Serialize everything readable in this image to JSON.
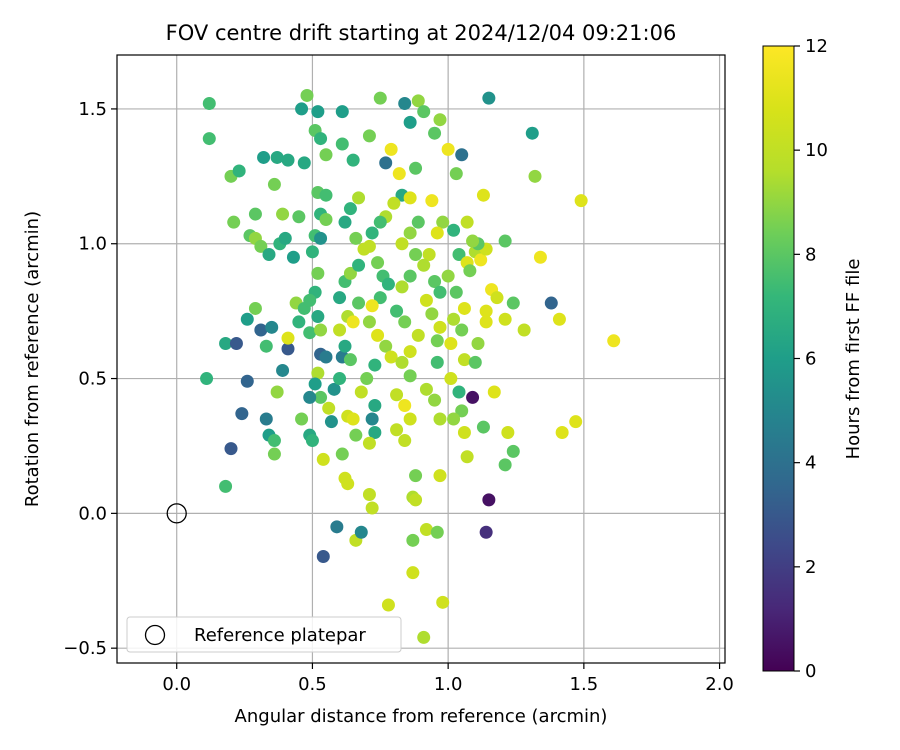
{
  "chart_data": {
    "type": "scatter",
    "title": "FOV centre drift starting at 2024/12/04 09:21:06",
    "xlabel": "Angular distance from reference (arcmin)",
    "ylabel": "Rotation from reference (arcmin)",
    "xlim": [
      -0.22,
      2.02
    ],
    "ylim": [
      -0.555,
      1.7
    ],
    "xticks": [
      0.0,
      0.5,
      1.0,
      1.5,
      2.0
    ],
    "xtick_labels": [
      "0.0",
      "0.5",
      "1.0",
      "1.5",
      "2.0"
    ],
    "yticks": [
      -0.5,
      0.0,
      0.5,
      1.0,
      1.5
    ],
    "ytick_labels": [
      "−0.5",
      "0.0",
      "0.5",
      "1.0",
      "1.5"
    ],
    "grid": true,
    "legend_position": "lower-left",
    "legend": [
      {
        "label": "Reference platepar",
        "marker": "open-circle"
      }
    ],
    "reference_point": {
      "x": 0.0,
      "y": 0.0
    },
    "colorbar": {
      "label": "Hours from first FF file",
      "range": [
        0,
        12
      ],
      "ticks": [
        0,
        2,
        4,
        6,
        8,
        10,
        12
      ],
      "colormap": "viridis"
    },
    "columns": [
      "x",
      "y",
      "hours"
    ],
    "points": [
      [
        0.12,
        1.52,
        7.5
      ],
      [
        0.12,
        1.39,
        7.5
      ],
      [
        0.11,
        0.5,
        7.0
      ],
      [
        0.18,
        0.63,
        6.5
      ],
      [
        0.18,
        0.1,
        7.5
      ],
      [
        0.2,
        0.24,
        3.0
      ],
      [
        0.22,
        0.63,
        3.0
      ],
      [
        0.24,
        0.37,
        3.5
      ],
      [
        0.26,
        0.49,
        3.5
      ],
      [
        0.2,
        1.25,
        8.5
      ],
      [
        0.23,
        1.27,
        7.0
      ],
      [
        0.21,
        1.08,
        8.5
      ],
      [
        0.26,
        0.72,
        6.0
      ],
      [
        0.29,
        0.76,
        8.5
      ],
      [
        0.31,
        0.68,
        3.5
      ],
      [
        0.33,
        0.35,
        4.5
      ],
      [
        0.34,
        0.29,
        6.0
      ],
      [
        0.36,
        0.27,
        7.5
      ],
      [
        0.37,
        0.45,
        9.0
      ],
      [
        0.36,
        0.22,
        8.5
      ],
      [
        0.33,
        0.62,
        7.5
      ],
      [
        0.35,
        0.69,
        5.0
      ],
      [
        0.39,
        0.53,
        5.0
      ],
      [
        0.41,
        0.61,
        3.0
      ],
      [
        0.41,
        0.65,
        11.0
      ],
      [
        0.32,
        1.32,
        6.0
      ],
      [
        0.37,
        1.32,
        6.5
      ],
      [
        0.41,
        1.31,
        6.5
      ],
      [
        0.36,
        1.22,
        8.5
      ],
      [
        0.39,
        1.11,
        9.0
      ],
      [
        0.29,
        1.11,
        8.0
      ],
      [
        0.27,
        1.03,
        8.0
      ],
      [
        0.29,
        1.02,
        9.0
      ],
      [
        0.31,
        0.99,
        8.5
      ],
      [
        0.34,
        0.96,
        6.5
      ],
      [
        0.38,
        1.0,
        7.0
      ],
      [
        0.4,
        1.02,
        6.5
      ],
      [
        0.43,
        0.95,
        6.0
      ],
      [
        0.45,
        1.1,
        8.0
      ],
      [
        0.44,
        0.78,
        9.0
      ],
      [
        0.47,
        0.76,
        7.5
      ],
      [
        0.45,
        0.71,
        7.0
      ],
      [
        0.47,
        1.3,
        6.5
      ],
      [
        0.46,
        1.5,
        6.0
      ],
      [
        0.48,
        1.55,
        8.5
      ],
      [
        0.52,
        1.49,
        6.0
      ],
      [
        0.51,
        1.42,
        8.0
      ],
      [
        0.53,
        1.39,
        7.0
      ],
      [
        0.55,
        1.33,
        8.5
      ],
      [
        0.52,
        1.19,
        8.0
      ],
      [
        0.55,
        1.18,
        7.5
      ],
      [
        0.53,
        1.11,
        7.0
      ],
      [
        0.55,
        1.09,
        8.5
      ],
      [
        0.51,
        1.03,
        7.5
      ],
      [
        0.53,
        1.02,
        5.5
      ],
      [
        0.5,
        0.97,
        7.0
      ],
      [
        0.52,
        0.89,
        8.5
      ],
      [
        0.51,
        0.82,
        7.0
      ],
      [
        0.49,
        0.79,
        7.5
      ],
      [
        0.52,
        0.73,
        6.5
      ],
      [
        0.49,
        0.67,
        7.5
      ],
      [
        0.53,
        0.68,
        9.0
      ],
      [
        0.53,
        0.59,
        3.5
      ],
      [
        0.55,
        0.58,
        4.5
      ],
      [
        0.52,
        0.52,
        9.5
      ],
      [
        0.51,
        0.48,
        6.0
      ],
      [
        0.53,
        0.43,
        8.0
      ],
      [
        0.49,
        0.43,
        5.0
      ],
      [
        0.46,
        0.35,
        8.5
      ],
      [
        0.49,
        0.29,
        6.5
      ],
      [
        0.5,
        0.27,
        7.0
      ],
      [
        0.56,
        0.39,
        10.0
      ],
      [
        0.57,
        0.34,
        5.5
      ],
      [
        0.54,
        0.2,
        10.5
      ],
      [
        0.54,
        -0.16,
        3.0
      ],
      [
        0.59,
        -0.05,
        4.5
      ],
      [
        0.63,
        0.11,
        10.5
      ],
      [
        0.62,
        0.13,
        10.5
      ],
      [
        0.66,
        -0.1,
        10.0
      ],
      [
        0.68,
        -0.07,
        5.0
      ],
      [
        0.61,
        0.22,
        8.5
      ],
      [
        0.63,
        0.36,
        10.5
      ],
      [
        0.65,
        0.35,
        11.0
      ],
      [
        0.66,
        0.29,
        8.5
      ],
      [
        0.58,
        0.46,
        5.5
      ],
      [
        0.6,
        0.5,
        7.0
      ],
      [
        0.61,
        0.58,
        4.5
      ],
      [
        0.62,
        0.62,
        6.5
      ],
      [
        0.64,
        0.57,
        8.0
      ],
      [
        0.6,
        0.68,
        10.0
      ],
      [
        0.63,
        0.73,
        9.5
      ],
      [
        0.65,
        0.71,
        11.5
      ],
      [
        0.67,
        0.78,
        8.0
      ],
      [
        0.6,
        0.8,
        6.5
      ],
      [
        0.62,
        0.86,
        7.5
      ],
      [
        0.64,
        0.89,
        9.0
      ],
      [
        0.67,
        0.92,
        7.0
      ],
      [
        0.69,
        0.98,
        10.0
      ],
      [
        0.66,
        1.02,
        8.5
      ],
      [
        0.62,
        1.08,
        6.5
      ],
      [
        0.64,
        1.13,
        7.0
      ],
      [
        0.67,
        1.17,
        9.5
      ],
      [
        0.65,
        1.31,
        7.0
      ],
      [
        0.61,
        1.37,
        7.5
      ],
      [
        0.61,
        1.49,
        6.0
      ],
      [
        0.71,
        1.4,
        8.5
      ],
      [
        0.75,
        1.54,
        8.5
      ],
      [
        0.77,
        1.3,
        4.0
      ],
      [
        0.79,
        1.35,
        11.5
      ],
      [
        0.82,
        1.26,
        11.5
      ],
      [
        0.83,
        1.18,
        6.5
      ],
      [
        0.8,
        1.15,
        10.0
      ],
      [
        0.77,
        1.1,
        9.5
      ],
      [
        0.75,
        1.08,
        7.5
      ],
      [
        0.72,
        1.04,
        7.0
      ],
      [
        0.71,
        0.99,
        10.0
      ],
      [
        0.74,
        0.93,
        8.5
      ],
      [
        0.76,
        0.88,
        7.5
      ],
      [
        0.78,
        0.85,
        7.0
      ],
      [
        0.75,
        0.8,
        7.5
      ],
      [
        0.72,
        0.77,
        11.5
      ],
      [
        0.71,
        0.71,
        9.0
      ],
      [
        0.74,
        0.66,
        11.0
      ],
      [
        0.77,
        0.62,
        9.0
      ],
      [
        0.79,
        0.58,
        10.5
      ],
      [
        0.73,
        0.55,
        7.0
      ],
      [
        0.7,
        0.5,
        8.5
      ],
      [
        0.68,
        0.45,
        10.0
      ],
      [
        0.73,
        0.4,
        6.5
      ],
      [
        0.72,
        0.35,
        5.0
      ],
      [
        0.73,
        0.3,
        6.5
      ],
      [
        0.71,
        0.26,
        10.0
      ],
      [
        0.71,
        0.07,
        10.0
      ],
      [
        0.72,
        0.02,
        10.0
      ],
      [
        0.78,
        -0.34,
        10.5
      ],
      [
        0.81,
        0.31,
        10.0
      ],
      [
        0.84,
        0.27,
        10.0
      ],
      [
        0.86,
        0.35,
        10.5
      ],
      [
        0.84,
        0.4,
        11.5
      ],
      [
        0.81,
        0.44,
        10.0
      ],
      [
        0.86,
        0.51,
        8.5
      ],
      [
        0.83,
        0.56,
        9.5
      ],
      [
        0.86,
        0.6,
        10.5
      ],
      [
        0.89,
        0.66,
        10.0
      ],
      [
        0.84,
        0.71,
        8.5
      ],
      [
        0.81,
        0.75,
        7.5
      ],
      [
        0.83,
        0.84,
        9.5
      ],
      [
        0.86,
        0.88,
        8.0
      ],
      [
        0.88,
        0.96,
        8.5
      ],
      [
        0.83,
        1.0,
        10.0
      ],
      [
        0.86,
        1.04,
        9.0
      ],
      [
        0.89,
        1.08,
        8.0
      ],
      [
        0.86,
        1.17,
        11.0
      ],
      [
        0.88,
        1.28,
        8.0
      ],
      [
        0.84,
        1.52,
        5.0
      ],
      [
        0.89,
        1.53,
        9.0
      ],
      [
        0.91,
        1.49,
        8.0
      ],
      [
        0.86,
        1.45,
        6.0
      ],
      [
        0.95,
        1.41,
        8.0
      ],
      [
        0.97,
        1.46,
        9.0
      ],
      [
        0.94,
        1.16,
        11.5
      ],
      [
        0.98,
        1.08,
        9.0
      ],
      [
        0.96,
        1.04,
        11.0
      ],
      [
        0.93,
        0.96,
        10.0
      ],
      [
        0.91,
        0.92,
        9.5
      ],
      [
        0.95,
        0.86,
        8.0
      ],
      [
        0.97,
        0.82,
        7.5
      ],
      [
        0.92,
        0.79,
        10.5
      ],
      [
        0.94,
        0.74,
        9.0
      ],
      [
        0.97,
        0.69,
        10.5
      ],
      [
        0.96,
        0.64,
        8.5
      ],
      [
        0.96,
        0.56,
        7.5
      ],
      [
        0.92,
        0.46,
        9.5
      ],
      [
        0.95,
        0.42,
        9.0
      ],
      [
        0.97,
        0.35,
        9.5
      ],
      [
        0.88,
        0.14,
        8.5
      ],
      [
        0.87,
        0.06,
        9.5
      ],
      [
        0.88,
        0.05,
        10.0
      ],
      [
        0.97,
        0.14,
        10.5
      ],
      [
        0.92,
        -0.06,
        10.0
      ],
      [
        0.96,
        -0.07,
        8.5
      ],
      [
        0.87,
        -0.1,
        8.5
      ],
      [
        0.87,
        -0.22,
        10.5
      ],
      [
        0.98,
        -0.33,
        10.5
      ],
      [
        0.91,
        -0.46,
        9.5
      ],
      [
        1.0,
        1.35,
        11.5
      ],
      [
        1.05,
        1.33,
        4.0
      ],
      [
        1.03,
        1.26,
        8.5
      ],
      [
        1.02,
        1.05,
        7.0
      ],
      [
        1.04,
        0.96,
        7.5
      ],
      [
        1.0,
        0.88,
        9.0
      ],
      [
        1.03,
        0.82,
        8.0
      ],
      [
        1.06,
        0.76,
        11.0
      ],
      [
        1.02,
        0.72,
        9.5
      ],
      [
        1.05,
        0.68,
        8.5
      ],
      [
        1.01,
        0.63,
        11.0
      ],
      [
        1.06,
        0.57,
        10.0
      ],
      [
        1.01,
        0.5,
        10.5
      ],
      [
        1.04,
        0.45,
        7.0
      ],
      [
        1.05,
        0.38,
        8.5
      ],
      [
        1.02,
        0.35,
        9.0
      ],
      [
        1.06,
        0.3,
        10.5
      ],
      [
        1.09,
        0.43,
        0.5
      ],
      [
        1.07,
        0.21,
        10.0
      ],
      [
        1.1,
        0.97,
        9.5
      ],
      [
        1.07,
        0.93,
        11.0
      ],
      [
        1.08,
        0.9,
        8.5
      ],
      [
        1.12,
        0.94,
        11.5
      ],
      [
        1.14,
        0.98,
        10.5
      ],
      [
        1.11,
        1.0,
        8.0
      ],
      [
        1.07,
        1.08,
        10.0
      ],
      [
        1.09,
        1.01,
        9.0
      ],
      [
        1.13,
        1.18,
        11.0
      ],
      [
        1.15,
        1.54,
        5.5
      ],
      [
        1.16,
        0.83,
        11.5
      ],
      [
        1.18,
        0.8,
        10.5
      ],
      [
        1.14,
        0.75,
        11.0
      ],
      [
        1.14,
        0.71,
        11.0
      ],
      [
        1.11,
        0.63,
        9.0
      ],
      [
        1.1,
        0.56,
        8.0
      ],
      [
        1.17,
        0.45,
        11.0
      ],
      [
        1.13,
        0.32,
        8.0
      ],
      [
        1.15,
        0.05,
        0.5
      ],
      [
        1.14,
        -0.07,
        1.5
      ],
      [
        1.21,
        1.01,
        8.0
      ],
      [
        1.24,
        0.78,
        8.0
      ],
      [
        1.21,
        0.72,
        10.5
      ],
      [
        1.22,
        0.3,
        10.5
      ],
      [
        1.24,
        0.23,
        8.0
      ],
      [
        1.21,
        0.18,
        8.0
      ],
      [
        1.28,
        0.68,
        10.0
      ],
      [
        1.31,
        1.41,
        6.0
      ],
      [
        1.32,
        1.25,
        9.0
      ],
      [
        1.34,
        0.95,
        11.5
      ],
      [
        1.38,
        0.78,
        3.5
      ],
      [
        1.41,
        0.72,
        11.0
      ],
      [
        1.42,
        0.3,
        11.0
      ],
      [
        1.47,
        0.34,
        11.0
      ],
      [
        1.49,
        1.16,
        11.0
      ],
      [
        1.61,
        0.64,
        11.5
      ]
    ]
  }
}
